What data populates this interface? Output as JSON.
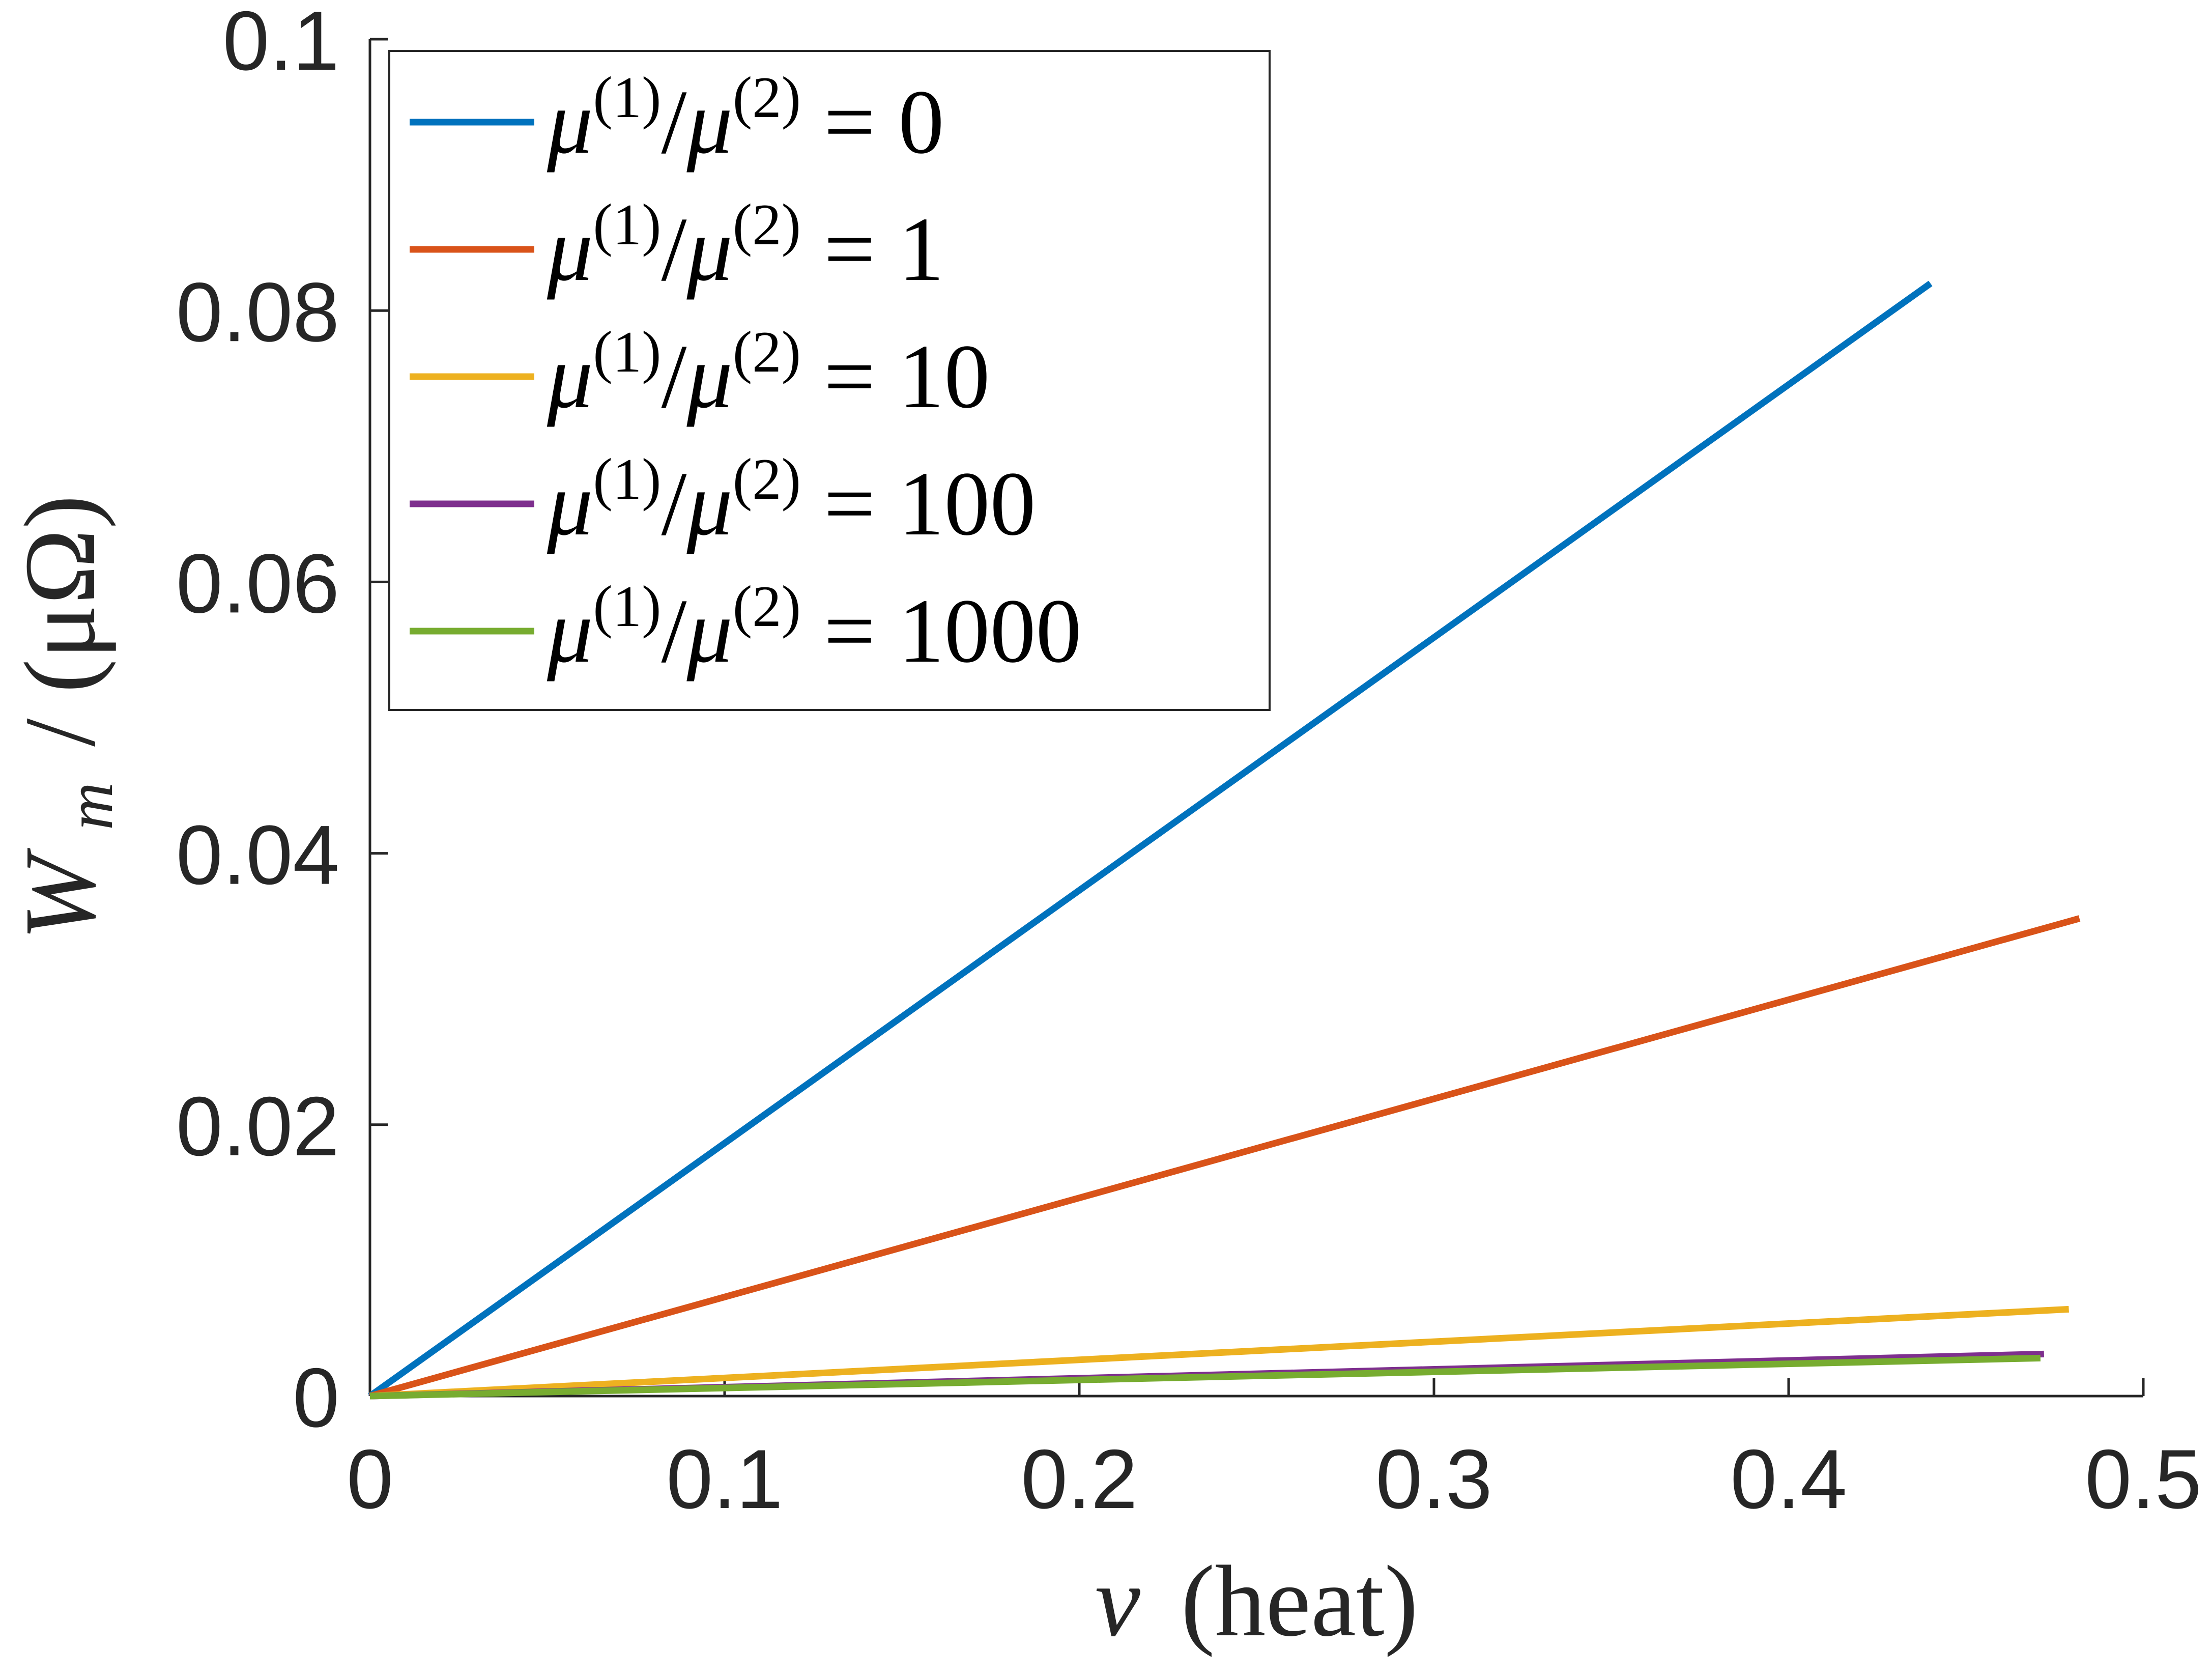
{
  "chart_data": {
    "type": "line",
    "xlabel": {
      "var": "v",
      "unit": "(heat)"
    },
    "ylabel": {
      "main": "W",
      "sub": "m",
      "rest": "/ (μΩ)"
    },
    "xlim": [
      0,
      0.5
    ],
    "ylim": [
      0,
      0.1
    ],
    "xticks": [
      0,
      0.1,
      0.2,
      0.3,
      0.4,
      0.5
    ],
    "yticks": [
      0,
      0.02,
      0.04,
      0.06,
      0.08,
      0.1
    ],
    "xtick_labels": [
      "0",
      "0.1",
      "0.2",
      "0.3",
      "0.4",
      "0.5"
    ],
    "ytick_labels": [
      "0",
      "0.02",
      "0.04",
      "0.06",
      "0.08",
      "0.1"
    ],
    "grid": false,
    "legend_position": "top-left",
    "series": [
      {
        "name": "μ(1)/μ(2) = 0",
        "ratio": "0",
        "color": "#0072BD",
        "x": [
          0,
          0.44
        ],
        "y": [
          0,
          0.082
        ]
      },
      {
        "name": "μ(1)/μ(2) = 1",
        "ratio": "1",
        "color": "#D95319",
        "x": [
          0,
          0.482
        ],
        "y": [
          0,
          0.0352
        ]
      },
      {
        "name": "μ(1)/μ(2) = 10",
        "ratio": "10",
        "color": "#EDB120",
        "x": [
          0,
          0.479
        ],
        "y": [
          0,
          0.0064
        ]
      },
      {
        "name": "μ(1)/μ(2) = 100",
        "ratio": "100",
        "color": "#7E2F8E",
        "x": [
          0,
          0.472
        ],
        "y": [
          0,
          0.0031
        ]
      },
      {
        "name": "μ(1)/μ(2) = 1000",
        "ratio": "1000",
        "color": "#77AC30",
        "x": [
          0,
          0.471
        ],
        "y": [
          0,
          0.0028
        ]
      }
    ]
  }
}
